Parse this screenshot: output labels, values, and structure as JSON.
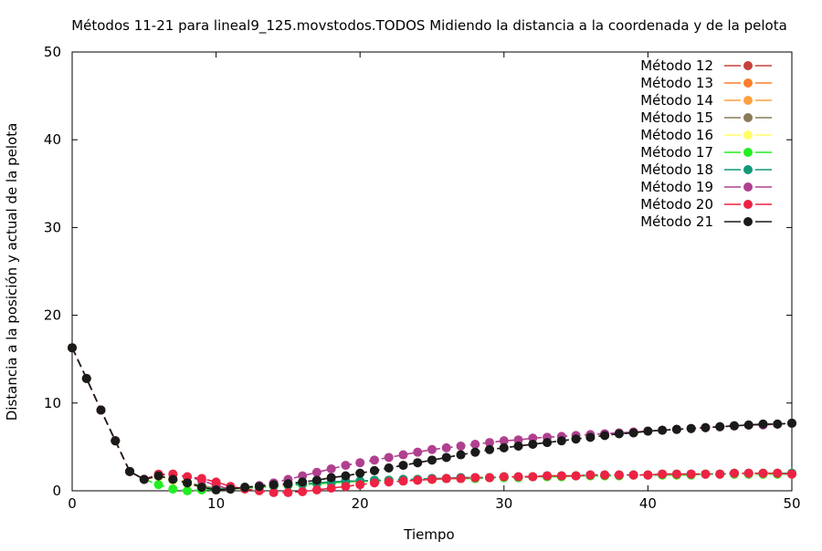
{
  "chart_data": {
    "type": "line",
    "title": "Métodos 11-21 para lineal9_125.movstodos.TODOS Midiendo la distancia a la coordenada y de la pelota",
    "xlabel": "Tiempo",
    "ylabel": "Distancia a la posición y actual de la pelota",
    "xlim": [
      0,
      50
    ],
    "ylim": [
      0,
      50
    ],
    "xticks": [
      "0",
      "10",
      "20",
      "30",
      "40",
      "50"
    ],
    "yticks": [
      "0",
      "10",
      "20",
      "30",
      "40",
      "50"
    ],
    "grid": false,
    "legend_position": "top-right",
    "x": [
      0,
      1,
      2,
      3,
      4,
      5,
      6,
      7,
      8,
      9,
      10,
      11,
      12,
      13,
      14,
      15,
      16,
      17,
      18,
      19,
      20,
      21,
      22,
      23,
      24,
      25,
      26,
      27,
      28,
      29,
      30,
      31,
      32,
      33,
      34,
      35,
      36,
      37,
      38,
      39,
      40,
      41,
      42,
      43,
      44,
      45,
      46,
      47,
      48,
      49,
      50
    ],
    "series": [
      {
        "name": "Método 12",
        "color": "#c8413b",
        "marker": "circle",
        "values": [
          16.3,
          12.8,
          9.2,
          5.7,
          2.2,
          1.3,
          1.7,
          1.3,
          0.9,
          0.5,
          0.2,
          0.2,
          0.4,
          0.5,
          0.6,
          0.7,
          0.8,
          0.9,
          1.0,
          1.1,
          1.1,
          1.2,
          1.2,
          1.3,
          1.3,
          1.4,
          1.4,
          1.5,
          1.5,
          1.5,
          1.6,
          1.6,
          1.6,
          1.7,
          1.7,
          1.7,
          1.8,
          1.8,
          1.8,
          1.8,
          1.8,
          1.9,
          1.9,
          1.9,
          1.9,
          1.9,
          2.0,
          2.0,
          2.0,
          2.0,
          2.0
        ]
      },
      {
        "name": "Método 13",
        "color": "#ff7f2a",
        "marker": "circle",
        "values": [
          16.3,
          12.8,
          9.2,
          5.7,
          2.2,
          1.3,
          1.7,
          1.2,
          0.8,
          0.4,
          0.1,
          0.2,
          0.3,
          0.4,
          0.5,
          0.6,
          0.7,
          0.8,
          0.9,
          1.0,
          1.1,
          1.1,
          1.2,
          1.2,
          1.3,
          1.3,
          1.4,
          1.4,
          1.4,
          1.5,
          1.5,
          1.5,
          1.6,
          1.6,
          1.6,
          1.7,
          1.7,
          1.7,
          1.7,
          1.8,
          1.8,
          1.8,
          1.8,
          1.8,
          1.9,
          1.9,
          1.9,
          1.9,
          1.9,
          1.9,
          1.9
        ]
      },
      {
        "name": "Método 14",
        "color": "#ffa040",
        "marker": "circle",
        "values": [
          16.3,
          12.8,
          9.2,
          5.7,
          2.2,
          1.3,
          1.8,
          1.4,
          1.0,
          0.6,
          0.3,
          0.2,
          0.3,
          0.4,
          0.5,
          0.6,
          0.7,
          0.8,
          0.9,
          1.0,
          1.1,
          1.1,
          1.2,
          1.2,
          1.3,
          1.3,
          1.4,
          1.4,
          1.5,
          1.5,
          1.5,
          1.6,
          1.6,
          1.6,
          1.7,
          1.7,
          1.7,
          1.7,
          1.8,
          1.8,
          1.8,
          1.8,
          1.8,
          1.9,
          1.9,
          1.9,
          1.9,
          1.9,
          1.9,
          2.0,
          2.0
        ]
      },
      {
        "name": "Método 15",
        "color": "#8a7a5a",
        "marker": "circle",
        "values": [
          16.3,
          12.8,
          9.2,
          5.7,
          2.2,
          1.3,
          1.7,
          1.3,
          0.9,
          0.5,
          0.2,
          0.2,
          0.4,
          0.5,
          0.7,
          0.8,
          1.0,
          1.2,
          1.5,
          1.7,
          2.0,
          2.3,
          2.6,
          2.9,
          3.2,
          3.5,
          3.8,
          4.1,
          4.4,
          4.7,
          4.9,
          5.1,
          5.3,
          5.5,
          5.7,
          5.9,
          6.1,
          6.3,
          6.5,
          6.6,
          6.8,
          6.9,
          7.0,
          7.1,
          7.2,
          7.3,
          7.4,
          7.5,
          7.6,
          7.6,
          7.7
        ]
      },
      {
        "name": "Método 16",
        "color": "#ffff66",
        "marker": "circle",
        "values": [
          16.3,
          12.8,
          9.2,
          5.7,
          2.2,
          1.3,
          1.6,
          1.2,
          0.8,
          0.4,
          0.1,
          0.2,
          0.3,
          0.4,
          0.5,
          0.6,
          0.7,
          0.8,
          0.9,
          1.0,
          1.0,
          1.1,
          1.2,
          1.2,
          1.3,
          1.3,
          1.4,
          1.4,
          1.4,
          1.5,
          1.5,
          1.5,
          1.6,
          1.6,
          1.6,
          1.7,
          1.7,
          1.7,
          1.7,
          1.8,
          1.8,
          1.8,
          1.8,
          1.8,
          1.9,
          1.9,
          1.9,
          1.9,
          1.9,
          1.9,
          1.9
        ]
      },
      {
        "name": "Método 17",
        "color": "#22ee22",
        "marker": "circle",
        "values": [
          16.3,
          12.8,
          9.2,
          5.7,
          2.2,
          1.3,
          0.7,
          0.2,
          0.0,
          0.1,
          0.2,
          0.2,
          0.3,
          0.4,
          0.5,
          0.6,
          0.7,
          0.8,
          0.9,
          1.0,
          1.1,
          1.1,
          1.2,
          1.2,
          1.3,
          1.3,
          1.4,
          1.4,
          1.4,
          1.5,
          1.5,
          1.5,
          1.6,
          1.6,
          1.6,
          1.7,
          1.7,
          1.7,
          1.7,
          1.8,
          1.8,
          1.8,
          1.8,
          1.8,
          1.9,
          1.9,
          1.9,
          1.9,
          1.9,
          1.9,
          1.9
        ]
      },
      {
        "name": "Método 18",
        "color": "#119977",
        "marker": "circle",
        "values": [
          16.3,
          12.8,
          9.2,
          5.7,
          2.2,
          1.3,
          1.7,
          1.3,
          0.9,
          0.5,
          0.2,
          0.2,
          0.4,
          0.5,
          0.6,
          0.7,
          0.8,
          0.9,
          1.0,
          1.1,
          1.1,
          1.2,
          1.2,
          1.3,
          1.3,
          1.4,
          1.4,
          1.5,
          1.5,
          1.5,
          1.6,
          1.6,
          1.6,
          1.7,
          1.7,
          1.7,
          1.8,
          1.8,
          1.8,
          1.8,
          1.8,
          1.9,
          1.9,
          1.9,
          1.9,
          1.9,
          2.0,
          2.0,
          2.0,
          2.0,
          2.0
        ]
      },
      {
        "name": "Método 19",
        "color": "#b0408f",
        "marker": "circle",
        "values": [
          16.3,
          12.8,
          9.2,
          5.7,
          2.2,
          1.3,
          1.8,
          1.9,
          1.6,
          1.2,
          0.6,
          0.2,
          0.4,
          0.6,
          0.9,
          1.3,
          1.7,
          2.1,
          2.5,
          2.9,
          3.2,
          3.5,
          3.8,
          4.1,
          4.4,
          4.7,
          4.9,
          5.1,
          5.3,
          5.5,
          5.7,
          5.8,
          6.0,
          6.1,
          6.2,
          6.3,
          6.4,
          6.5,
          6.6,
          6.7,
          6.8,
          6.9,
          7.0,
          7.1,
          7.2,
          7.3,
          7.4,
          7.5,
          7.5,
          7.6,
          7.7
        ]
      },
      {
        "name": "Método 20",
        "color": "#ee2244",
        "marker": "circle",
        "values": [
          16.3,
          12.8,
          9.2,
          5.7,
          2.2,
          1.3,
          1.9,
          1.9,
          1.6,
          1.4,
          1.0,
          0.5,
          0.2,
          0.0,
          -0.2,
          -0.2,
          -0.1,
          0.1,
          0.3,
          0.5,
          0.7,
          0.9,
          1.0,
          1.1,
          1.2,
          1.3,
          1.4,
          1.4,
          1.5,
          1.5,
          1.6,
          1.6,
          1.6,
          1.7,
          1.7,
          1.7,
          1.8,
          1.8,
          1.8,
          1.8,
          1.8,
          1.9,
          1.9,
          1.9,
          1.9,
          1.9,
          2.0,
          2.0,
          2.0,
          2.0,
          1.9
        ]
      },
      {
        "name": "Método 21",
        "color": "#1a1a1a",
        "marker": "circle",
        "values": [
          16.3,
          12.8,
          9.2,
          5.7,
          2.2,
          1.3,
          1.7,
          1.3,
          0.9,
          0.4,
          0.1,
          0.2,
          0.4,
          0.5,
          0.7,
          0.8,
          1.0,
          1.2,
          1.5,
          1.7,
          2.0,
          2.3,
          2.6,
          2.9,
          3.2,
          3.5,
          3.8,
          4.1,
          4.4,
          4.7,
          4.9,
          5.1,
          5.3,
          5.5,
          5.7,
          5.9,
          6.1,
          6.3,
          6.5,
          6.6,
          6.8,
          6.9,
          7.0,
          7.1,
          7.2,
          7.3,
          7.4,
          7.5,
          7.6,
          7.6,
          7.7
        ]
      }
    ]
  }
}
